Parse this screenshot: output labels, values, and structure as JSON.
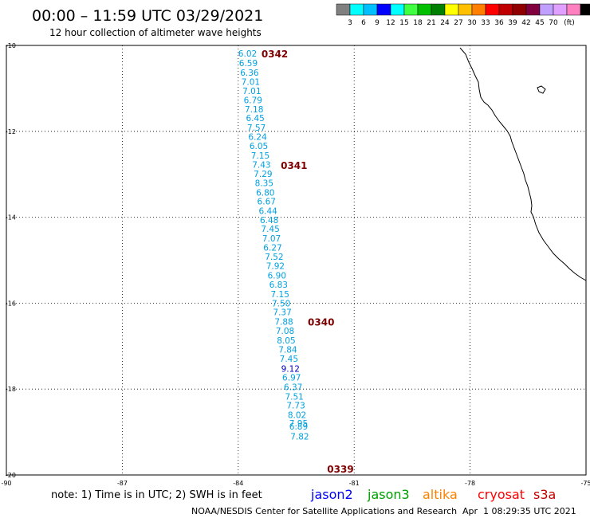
{
  "header": {
    "title": "00:00 – 11:59 UTC 03/29/2021",
    "subtitle": "12 hour collection of altimeter wave heights"
  },
  "legend": {
    "colors": [
      "#808080",
      "#00ffff",
      "#00bfff",
      "#0000ff",
      "#00ffff",
      "#40ff40",
      "#00c000",
      "#008000",
      "#ffff00",
      "#ffc000",
      "#ff8000",
      "#ff0000",
      "#c00000",
      "#900000",
      "#800040",
      "#c0a0ff",
      "#e0a0ff",
      "#ff80c0",
      "#000000"
    ],
    "labels": [
      "3",
      "6",
      "9",
      "12",
      "15",
      "18",
      "21",
      "24",
      "27",
      "30",
      "33",
      "36",
      "39",
      "42",
      "45",
      "70"
    ],
    "unit": "(ft)"
  },
  "axes": {
    "lon_ticks": [
      "-90",
      "-87",
      "-84",
      "-81",
      "-78",
      "-75"
    ],
    "lat_ticks": [
      "-10",
      "-12",
      "-14",
      "-16",
      "-18",
      "-20"
    ]
  },
  "wave_color": "#00a0e0",
  "wave_color_alt": "#0000c0",
  "time_color": "#800000",
  "waves": [
    {
      "lon": -84.0,
      "lat": -10.19,
      "v": "6.02"
    },
    {
      "lon": -83.98,
      "lat": -10.41,
      "v": "6.59"
    },
    {
      "lon": -83.95,
      "lat": -10.63,
      "v": "6.36"
    },
    {
      "lon": -83.92,
      "lat": -10.84,
      "v": "7.01"
    },
    {
      "lon": -83.89,
      "lat": -11.06,
      "v": "7.01"
    },
    {
      "lon": -83.86,
      "lat": -11.27,
      "v": "6.79"
    },
    {
      "lon": -83.83,
      "lat": -11.48,
      "v": "7.18"
    },
    {
      "lon": -83.8,
      "lat": -11.69,
      "v": "6.45"
    },
    {
      "lon": -83.77,
      "lat": -11.91,
      "v": "7.57"
    },
    {
      "lon": -83.74,
      "lat": -12.12,
      "v": "6.24"
    },
    {
      "lon": -83.71,
      "lat": -12.34,
      "v": "6.05"
    },
    {
      "lon": -83.67,
      "lat": -12.56,
      "v": "7.15"
    },
    {
      "lon": -83.64,
      "lat": -12.77,
      "v": "7.43"
    },
    {
      "lon": -83.6,
      "lat": -12.99,
      "v": "7.29"
    },
    {
      "lon": -83.57,
      "lat": -13.2,
      "v": "8.35"
    },
    {
      "lon": -83.54,
      "lat": -13.42,
      "v": "6.80"
    },
    {
      "lon": -83.51,
      "lat": -13.63,
      "v": "6.67"
    },
    {
      "lon": -83.47,
      "lat": -13.85,
      "v": "6.44"
    },
    {
      "lon": -83.44,
      "lat": -14.06,
      "v": "6.48"
    },
    {
      "lon": -83.41,
      "lat": -14.27,
      "v": "7.45"
    },
    {
      "lon": -83.38,
      "lat": -14.49,
      "v": "7.07"
    },
    {
      "lon": -83.35,
      "lat": -14.7,
      "v": "6.27"
    },
    {
      "lon": -83.31,
      "lat": -14.92,
      "v": "7.52"
    },
    {
      "lon": -83.28,
      "lat": -15.13,
      "v": "7.92"
    },
    {
      "lon": -83.24,
      "lat": -15.35,
      "v": "6.90"
    },
    {
      "lon": -83.2,
      "lat": -15.57,
      "v": "6.83"
    },
    {
      "lon": -83.16,
      "lat": -15.79,
      "v": "7.15"
    },
    {
      "lon": -83.13,
      "lat": -16.0,
      "v": "7.50"
    },
    {
      "lon": -83.1,
      "lat": -16.21,
      "v": "7.37"
    },
    {
      "lon": -83.06,
      "lat": -16.43,
      "v": "7.88"
    },
    {
      "lon": -83.03,
      "lat": -16.64,
      "v": "7.08"
    },
    {
      "lon": -83.0,
      "lat": -16.86,
      "v": "8.05"
    },
    {
      "lon": -82.96,
      "lat": -17.08,
      "v": "7.84"
    },
    {
      "lon": -82.93,
      "lat": -17.29,
      "v": "7.45"
    },
    {
      "lon": -82.89,
      "lat": -17.52,
      "v": "9.12",
      "alt": true
    },
    {
      "lon": -82.86,
      "lat": -17.73,
      "v": "6.97"
    },
    {
      "lon": -82.82,
      "lat": -17.95,
      "v": "6.37"
    },
    {
      "lon": -82.79,
      "lat": -18.17,
      "v": "7.51"
    },
    {
      "lon": -82.75,
      "lat": -18.38,
      "v": "7.73"
    },
    {
      "lon": -82.72,
      "lat": -18.6,
      "v": "8.02"
    },
    {
      "lon": -82.68,
      "lat": -18.79,
      "v": "7.95"
    },
    {
      "lon": -82.68,
      "lat": -18.87,
      "v": "6.89"
    },
    {
      "lon": -82.65,
      "lat": -19.1,
      "v": "7.82"
    }
  ],
  "times": [
    {
      "lon": -83.4,
      "lat": -10.19,
      "v": "0342"
    },
    {
      "lon": -82.9,
      "lat": -12.78,
      "v": "0341"
    },
    {
      "lon": -82.2,
      "lat": -16.43,
      "v": "0340"
    },
    {
      "lon": -81.7,
      "lat": -19.85,
      "v": "0339"
    }
  ],
  "footer": {
    "note": "note: 1) Time is in UTC; 2) SWH is in feet",
    "missions": [
      {
        "name": "jason2",
        "color": "#0000ff"
      },
      {
        "name": "jason3",
        "color": "#00a000"
      },
      {
        "name": "altika",
        "color": "#ff8000"
      },
      {
        "name": "cryosat",
        "color": "#ff0000"
      },
      {
        "name": "s3a",
        "color": "#c00000"
      }
    ],
    "credit": "NOAA/NESDIS Center for Satellite Applications and Research",
    "timestamp": "Apr  1 08:29:35 UTC 2021"
  }
}
